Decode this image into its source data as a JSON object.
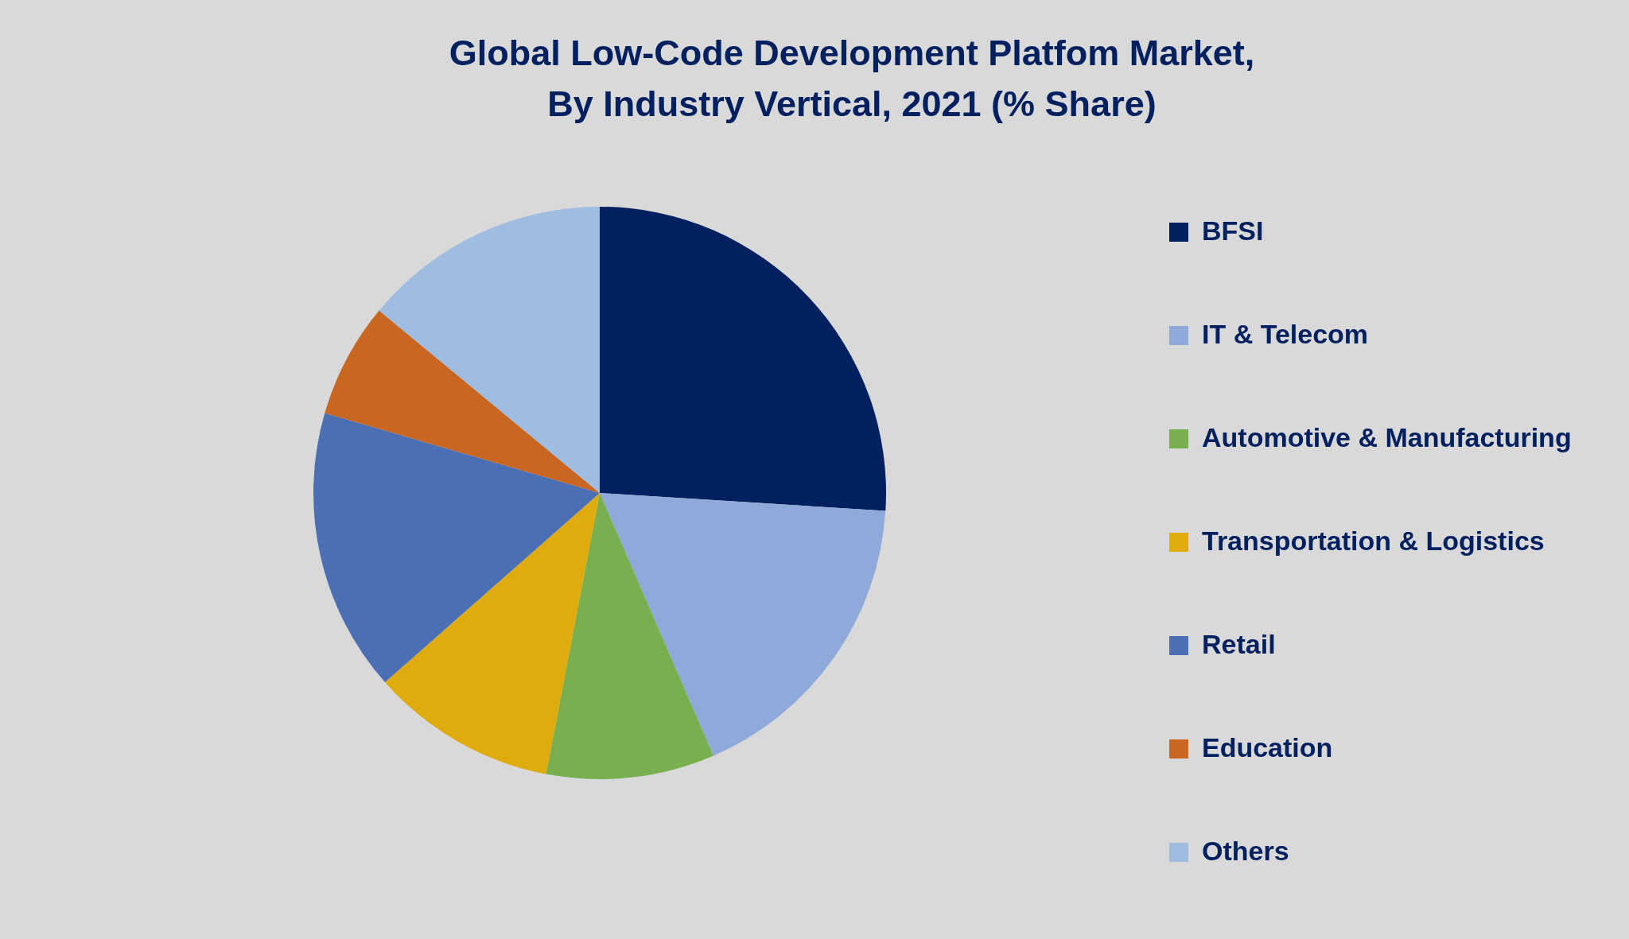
{
  "chart_data": {
    "type": "pie",
    "title": "Global Low-Code Development Platfom Market,\nBy Industry Vertical, 2021 (% Share)",
    "categories": [
      "BFSI",
      "IT & Telecom",
      "Automotive & Manufacturing",
      "Transportation & Logistics",
      "Retail",
      "Education",
      "Others"
    ],
    "values": [
      26,
      17.5,
      9.5,
      10.5,
      16,
      6.5,
      14
    ],
    "colors": [
      "#002060",
      "#8fa9da",
      "#78b050",
      "#e0ab0c",
      "#4a6fb4",
      "#c96622",
      "#9fbde1"
    ],
    "legend": "right"
  }
}
